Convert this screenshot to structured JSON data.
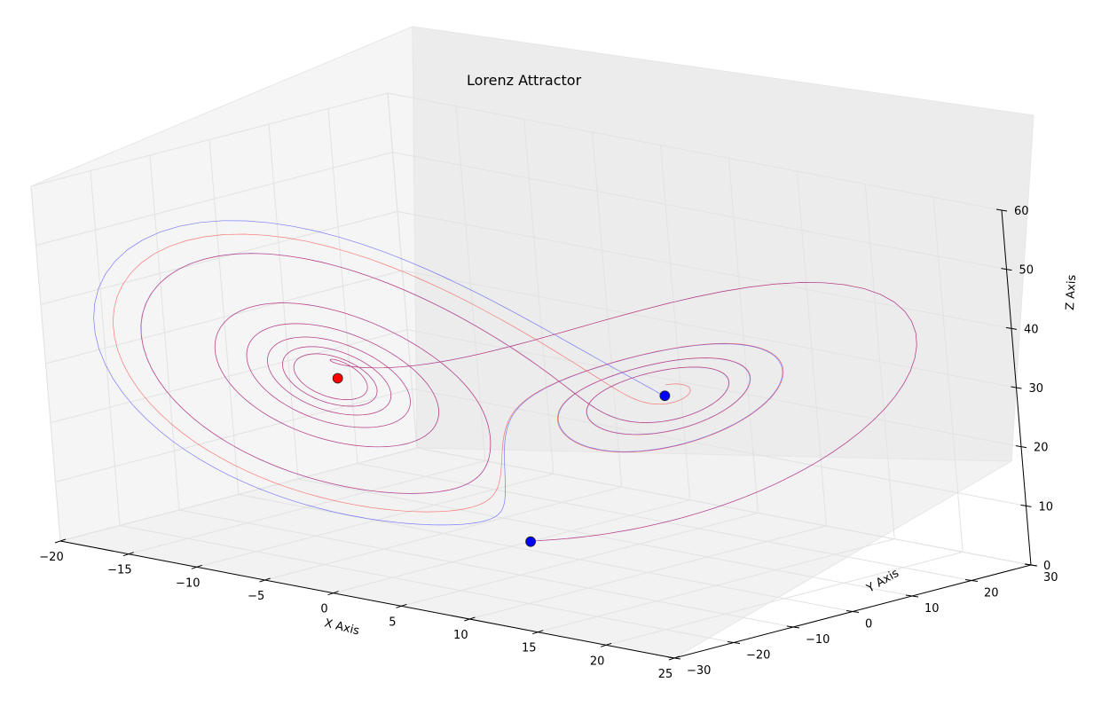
{
  "chart_data": {
    "type": "line",
    "projection": "3d",
    "title": "Lorenz Attractor",
    "xlabel": "X Axis",
    "ylabel": "Y Axis",
    "zlabel": "Z Axis",
    "xlim": [
      -20,
      25
    ],
    "ylim": [
      -30,
      30
    ],
    "zlim": [
      0,
      60
    ],
    "xticks": [
      "−20",
      "−15",
      "−10",
      "−5",
      "0",
      "5",
      "10",
      "15",
      "20",
      "25"
    ],
    "yticks": [
      "−30",
      "−20",
      "−10",
      "0",
      "10",
      "20",
      "30"
    ],
    "zticks": [
      "0",
      "10",
      "20",
      "30",
      "40",
      "50",
      "60"
    ],
    "grid": true,
    "series": [
      {
        "color": "#0000ff",
        "linewidth": 0.3,
        "alpha": 0.5
      },
      {
        "color": "#ff0000",
        "linewidth": 0.3,
        "alpha": 0.5
      }
    ],
    "markers": [
      {
        "x": -8.2,
        "y": -8.2,
        "z": 27,
        "color": "#ff0000"
      },
      {
        "x": 8.5,
        "y": 8.5,
        "z": 27,
        "color": "#0000ff"
      },
      {
        "x": 1,
        "y": 1,
        "z": 1,
        "color": "#0000ff"
      }
    ]
  }
}
